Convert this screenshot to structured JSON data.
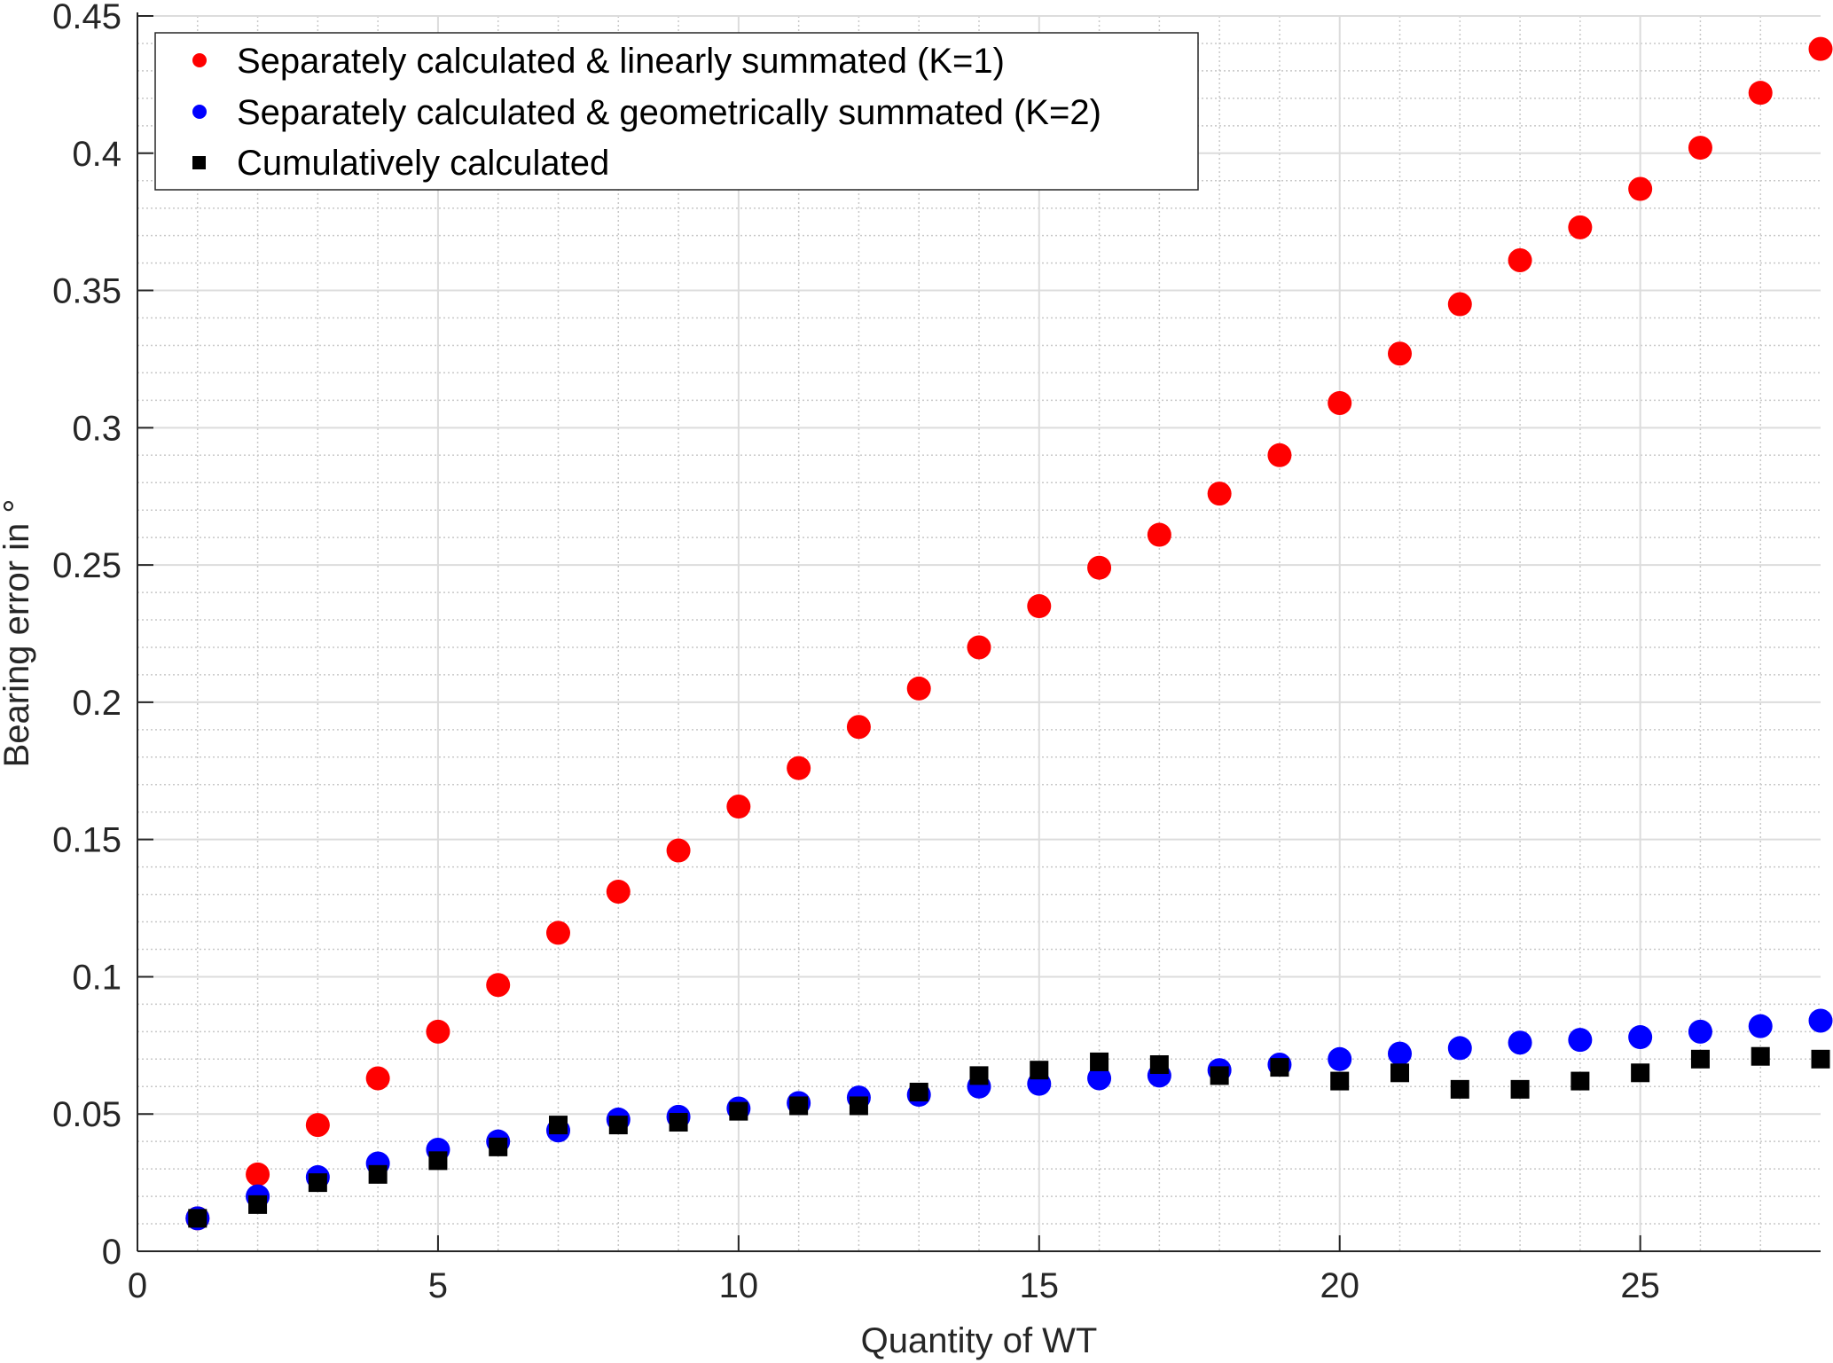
{
  "chart_data": {
    "type": "scatter",
    "title": "",
    "xlabel": "Quantity of WT",
    "ylabel": "Bearing error in °",
    "xlim": [
      0,
      28
    ],
    "ylim": [
      0,
      0.45
    ],
    "xticks": [
      "0",
      "5",
      "10",
      "15",
      "20",
      "25"
    ],
    "yticks": [
      "0",
      "0.05",
      "0.1",
      "0.15",
      "0.2",
      "0.25",
      "0.3",
      "0.35",
      "0.4",
      "0.45"
    ],
    "grid": "major and minor",
    "legend_position": "top-left",
    "x": [
      1,
      2,
      3,
      4,
      5,
      6,
      7,
      8,
      9,
      10,
      11,
      12,
      13,
      14,
      15,
      16,
      17,
      18,
      19,
      20,
      21,
      22,
      23,
      24,
      25,
      26,
      27,
      28
    ],
    "series": [
      {
        "name": "Separately calculated & linearly summated (K=1)",
        "marker": "circle",
        "color": "#ff0000",
        "values": [
          0.012,
          0.028,
          0.046,
          0.063,
          0.08,
          0.097,
          0.116,
          0.131,
          0.146,
          0.162,
          0.176,
          0.191,
          0.205,
          0.22,
          0.235,
          0.249,
          0.261,
          0.276,
          0.29,
          0.309,
          0.327,
          0.345,
          0.361,
          0.373,
          0.387,
          0.402,
          0.422,
          0.438
        ]
      },
      {
        "name": "Separately calculated & geometrically summated (K=2)",
        "marker": "circle",
        "color": "#0000ff",
        "values": [
          0.012,
          0.02,
          0.027,
          0.032,
          0.037,
          0.04,
          0.044,
          0.048,
          0.049,
          0.052,
          0.054,
          0.056,
          0.057,
          0.06,
          0.061,
          0.063,
          0.064,
          0.066,
          0.068,
          0.07,
          0.072,
          0.074,
          0.076,
          0.077,
          0.078,
          0.08,
          0.082,
          0.084
        ]
      },
      {
        "name": "Cumulatively calculated",
        "marker": "square",
        "color": "#000000",
        "values": [
          0.012,
          0.017,
          0.025,
          0.028,
          0.033,
          0.038,
          0.046,
          0.046,
          0.047,
          0.051,
          0.053,
          0.053,
          0.058,
          0.064,
          0.066,
          0.069,
          0.068,
          0.064,
          0.067,
          0.062,
          0.065,
          0.059,
          0.059,
          0.062,
          0.065,
          0.07,
          0.071,
          0.07
        ]
      }
    ]
  }
}
